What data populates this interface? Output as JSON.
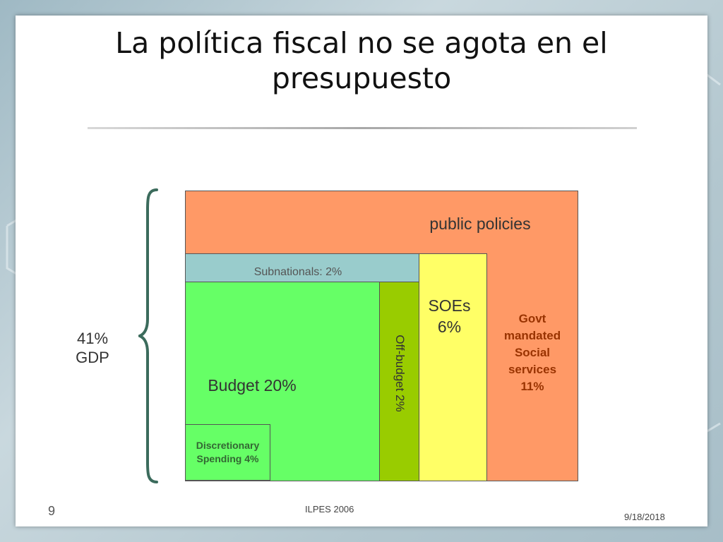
{
  "slide": {
    "title_line1": "La política fiscal no se agota en el",
    "title_line2": "presupuesto"
  },
  "diagram": {
    "public_policies": "public policies",
    "subnationals": "Subnationals: 2%",
    "soes_line1": "SOEs",
    "soes_line2": "6%",
    "govt_lines": [
      "Govt",
      "mandated",
      "Social",
      "services",
      "11%"
    ],
    "budget": "Budget 20%",
    "offbudget": "Off-budget 2%",
    "discretionary_line1": "Discretionary",
    "discretionary_line2": "Spending 4%",
    "gdp_line1": "41%",
    "gdp_line2": "GDP",
    "colors": {
      "public_policies": "#ff9966",
      "subnationals": "#99cccc",
      "soes": "#ffff66",
      "budget": "#66ff66",
      "offbudget": "#99cc00",
      "label_dark_green": "#336633",
      "label_brown": "#993300",
      "bracket": "#3b6b5c"
    }
  },
  "footer": {
    "page_number": "9",
    "source": "ILPES 2006",
    "date": "9/18/2018"
  }
}
